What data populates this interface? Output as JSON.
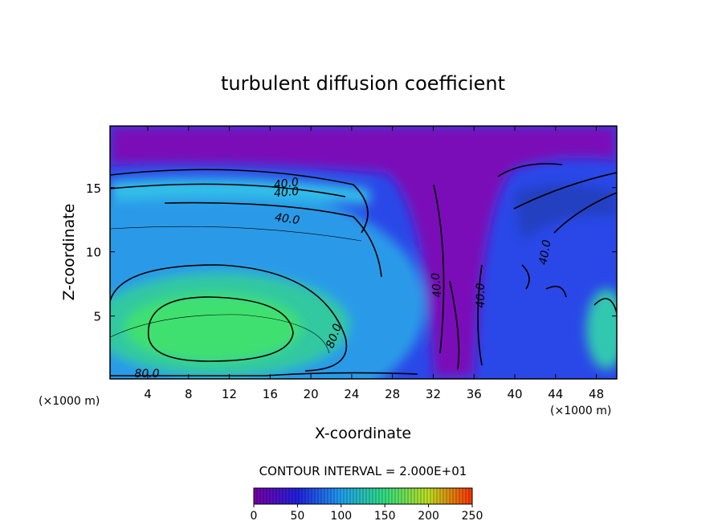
{
  "chart_data": {
    "type": "contour",
    "title": "turbulent diffusion coefficient",
    "x_label": "X-coordinate",
    "y_label": "Z-coordinate",
    "x_unit": "(×1000 m)",
    "y_unit": "(×1000 m)",
    "xlim": [
      0.3,
      50
    ],
    "ylim": [
      0.1,
      19.8
    ],
    "xticks": [
      4,
      8,
      12,
      16,
      20,
      24,
      28,
      32,
      36,
      40,
      44,
      48
    ],
    "yticks": [
      5,
      10,
      15
    ],
    "contour_interval_text": "CONTOUR INTERVAL = 2.000E+01",
    "contour_labels": [
      {
        "value": 40,
        "label": "40.0"
      },
      {
        "value": 40,
        "label": "40.0"
      },
      {
        "value": 40,
        "label": "40.0"
      },
      {
        "value": 40,
        "label": "40.0"
      },
      {
        "value": 40,
        "label": "40.0"
      },
      {
        "value": 40,
        "label": "40.0"
      },
      {
        "value": 80,
        "label": "80.0"
      },
      {
        "value": 80,
        "label": "80.0"
      }
    ],
    "colorbar": {
      "lim": [
        0,
        250
      ],
      "ticks": [
        0,
        50,
        100,
        150,
        200,
        250
      ],
      "colors": [
        "#7a00a8",
        "#2020e0",
        "#20a0f0",
        "#30e080",
        "#c0e020",
        "#ff3000"
      ]
    }
  }
}
